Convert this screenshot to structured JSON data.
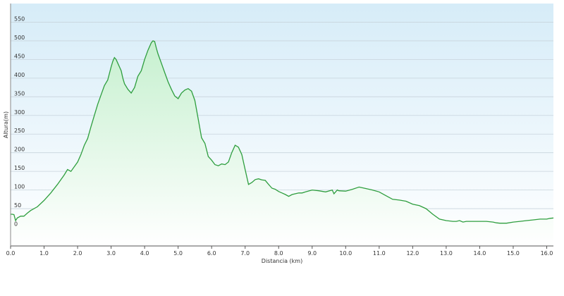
{
  "chart_data": {
    "type": "area",
    "title": "",
    "xlabel": "Distancia  (km)",
    "ylabel": "Altura(m)",
    "xlim": [
      0,
      16.2
    ],
    "ylim": [
      -50,
      600
    ],
    "grid": true,
    "colors": {
      "line": "#2e9e3e",
      "fill_top": "#c6f0cf",
      "fill_bottom": "#ffffff",
      "plot_bg_top": "#d6ecf8",
      "plot_bg_bottom": "#ffffff",
      "grid": "#c8d4dc"
    },
    "x_ticks": [
      "0.0",
      "1.0",
      "2.0",
      "3.0",
      "4.0",
      "5.0",
      "6.0",
      "7.0",
      "8.0",
      "9.0",
      "10.0",
      "11.0",
      "12.0",
      "13.0",
      "14.0",
      "15.0",
      "16.0"
    ],
    "y_ticks": [
      "0",
      "50",
      "100",
      "150",
      "200",
      "250",
      "300",
      "350",
      "400",
      "450",
      "500",
      "550"
    ],
    "series": [
      {
        "x": [
          0.0,
          0.05,
          0.1,
          0.15,
          0.2,
          0.3,
          0.4,
          0.5,
          0.6,
          0.8,
          1.0,
          1.2,
          1.4,
          1.6,
          1.7,
          1.8,
          2.0,
          2.1,
          2.2,
          2.3,
          2.4,
          2.5,
          2.6,
          2.7,
          2.8,
          2.9,
          3.0,
          3.05,
          3.1,
          3.15,
          3.2,
          3.25,
          3.3,
          3.35,
          3.4,
          3.5,
          3.6,
          3.7,
          3.8,
          3.9,
          4.0,
          4.1,
          4.2,
          4.25,
          4.3,
          4.35,
          4.4,
          4.5,
          4.6,
          4.7,
          4.8,
          4.9,
          5.0,
          5.1,
          5.2,
          5.3,
          5.4,
          5.5,
          5.6,
          5.7,
          5.8,
          5.9,
          6.0,
          6.1,
          6.2,
          6.3,
          6.4,
          6.5,
          6.6,
          6.7,
          6.8,
          6.9,
          7.0,
          7.1,
          7.2,
          7.3,
          7.4,
          7.5,
          7.6,
          7.7,
          7.8,
          7.9,
          8.0,
          8.1,
          8.2,
          8.3,
          8.4,
          8.5,
          8.6,
          8.7,
          8.8,
          9.0,
          9.2,
          9.4,
          9.6,
          9.65,
          9.7,
          9.75,
          9.8,
          10.0,
          10.2,
          10.4,
          10.6,
          10.8,
          11.0,
          11.2,
          11.4,
          11.6,
          11.8,
          12.0,
          12.2,
          12.4,
          12.6,
          12.8,
          13.0,
          13.2,
          13.3,
          13.4,
          13.5,
          13.6,
          13.8,
          14.0,
          14.2,
          14.4,
          14.5,
          14.6,
          14.8,
          15.0,
          15.2,
          15.4,
          15.6,
          15.8,
          16.0,
          16.1,
          16.2
        ],
        "y": [
          35,
          35,
          34,
          18,
          25,
          30,
          30,
          38,
          45,
          55,
          72,
          92,
          115,
          140,
          155,
          150,
          175,
          195,
          220,
          238,
          270,
          300,
          330,
          355,
          380,
          395,
          430,
          445,
          455,
          450,
          440,
          430,
          420,
          400,
          385,
          370,
          360,
          375,
          405,
          420,
          450,
          475,
          495,
          500,
          498,
          480,
          465,
          440,
          415,
          390,
          370,
          352,
          345,
          360,
          368,
          372,
          365,
          340,
          290,
          240,
          225,
          190,
          180,
          168,
          165,
          170,
          168,
          175,
          200,
          220,
          215,
          195,
          155,
          115,
          120,
          128,
          130,
          127,
          126,
          115,
          105,
          102,
          96,
          92,
          88,
          83,
          88,
          90,
          92,
          92,
          95,
          100,
          98,
          95,
          100,
          90,
          95,
          100,
          98,
          97,
          102,
          108,
          104,
          100,
          95,
          85,
          75,
          73,
          70,
          62,
          58,
          50,
          35,
          22,
          18,
          16,
          16,
          18,
          14,
          16,
          16,
          16,
          16,
          14,
          12,
          11,
          11,
          14,
          16,
          18,
          20,
          22,
          22,
          24,
          25
        ]
      }
    ]
  }
}
